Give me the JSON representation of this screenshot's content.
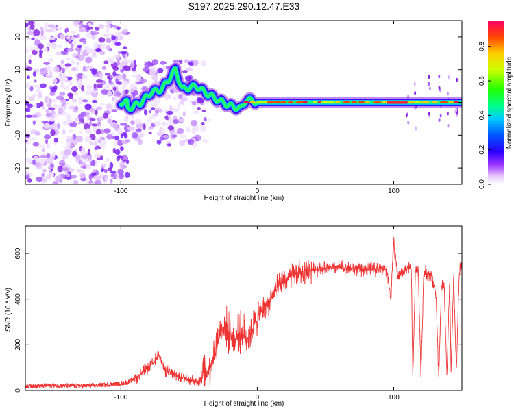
{
  "title": "S197.2025.290.12.47.E33",
  "chart_data": [
    {
      "type": "heatmap",
      "xlabel": "Height of straight line (km)",
      "ylabel": "Frequency (Hz)",
      "xlim": [
        -170,
        150
      ],
      "ylim": [
        -25,
        25
      ],
      "xticks": [
        -100,
        0,
        100
      ],
      "yticks": [
        -20,
        -10,
        0,
        10,
        20
      ],
      "colorbar": {
        "label": "Normalized spectral amplitude",
        "range": [
          0.0,
          0.95
        ],
        "ticks": [
          0.0,
          0.2,
          0.4,
          0.6,
          0.8
        ]
      },
      "ridge": {
        "description_points": [
          {
            "x": -95,
            "freq": -2
          },
          {
            "x": -85,
            "freq": 0
          },
          {
            "x": -78,
            "freq": 3
          },
          {
            "x": -70,
            "freq": 4
          },
          {
            "x": -60,
            "freq": 10
          },
          {
            "x": -55,
            "freq": 4
          },
          {
            "x": -45,
            "freq": 5
          },
          {
            "x": -38,
            "freq": 3
          },
          {
            "x": -30,
            "freq": 1
          },
          {
            "x": -20,
            "freq": -1
          },
          {
            "x": -12,
            "freq": -2
          },
          {
            "x": -8,
            "freq": 1
          },
          {
            "x": 0,
            "freq": 0
          },
          {
            "x": 150,
            "freq": 0
          }
        ]
      }
    },
    {
      "type": "line",
      "xlabel": "Height of straight line (km)",
      "ylabel": "SNR (10 * v/v)",
      "xlim": [
        -170,
        150
      ],
      "ylim": [
        0,
        720
      ],
      "xticks": [
        -100,
        0,
        100
      ],
      "yticks": [
        0,
        200,
        400,
        600
      ],
      "color": "#ee3333",
      "series": [
        {
          "name": "SNR",
          "x": [
            -170,
            -150,
            -130,
            -110,
            -95,
            -88,
            -82,
            -76,
            -72,
            -68,
            -62,
            -56,
            -50,
            -44,
            -40,
            -36,
            -32,
            -28,
            -24,
            -20,
            -16,
            -12,
            -8,
            -4,
            0,
            5,
            10,
            15,
            20,
            25,
            30,
            35,
            40,
            50,
            60,
            70,
            80,
            90,
            95,
            98,
            100,
            103,
            106,
            110,
            113,
            114,
            116,
            118,
            120,
            122,
            124,
            126,
            128,
            130,
            131,
            133,
            135,
            137,
            139,
            141,
            142,
            144,
            146,
            148,
            150
          ],
          "y": [
            20,
            22,
            20,
            25,
            35,
            60,
            90,
            120,
            160,
            90,
            70,
            60,
            50,
            40,
            60,
            90,
            150,
            250,
            280,
            250,
            220,
            260,
            230,
            260,
            320,
            360,
            400,
            450,
            480,
            500,
            510,
            520,
            530,
            535,
            540,
            535,
            530,
            535,
            530,
            400,
            650,
            500,
            520,
            540,
            530,
            60,
            520,
            530,
            60,
            520,
            510,
            510,
            500,
            450,
            420,
            60,
            450,
            470,
            60,
            480,
            80,
            500,
            80,
            520,
            540
          ]
        }
      ]
    }
  ]
}
